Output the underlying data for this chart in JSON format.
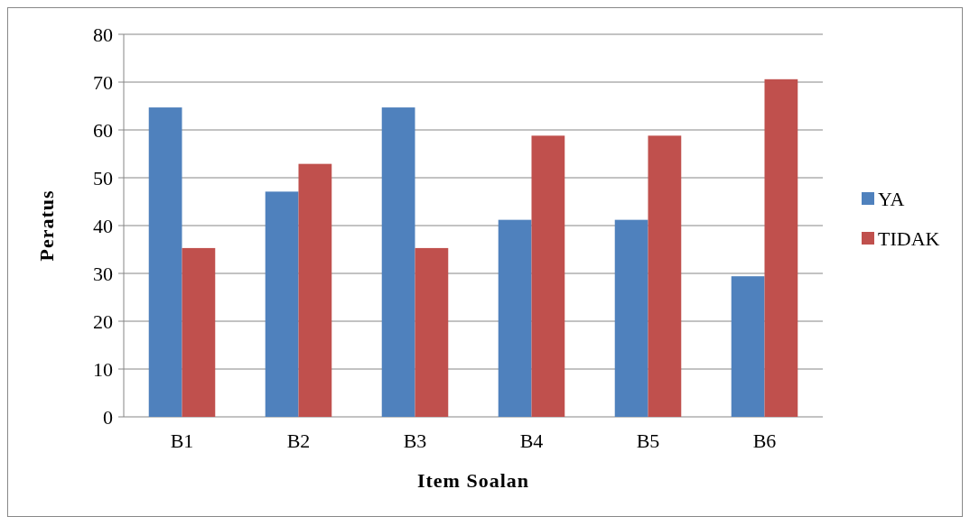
{
  "chart_data": {
    "type": "bar",
    "xlabel": "Item Soalan",
    "ylabel": "Peratus",
    "categories": [
      "B1",
      "B2",
      "B3",
      "B4",
      "B5",
      "B6"
    ],
    "series": [
      {
        "name": "YA",
        "color": "#4f81bd",
        "values": [
          64.7,
          47.1,
          64.7,
          41.2,
          41.2,
          29.4
        ]
      },
      {
        "name": "TIDAK",
        "color": "#c0504d",
        "values": [
          35.3,
          52.9,
          35.3,
          58.8,
          58.8,
          70.6
        ]
      }
    ],
    "ylim": [
      0,
      80
    ],
    "yticks": [
      0,
      10,
      20,
      30,
      40,
      50,
      60,
      70,
      80
    ],
    "grid": "y",
    "legend": "right"
  }
}
